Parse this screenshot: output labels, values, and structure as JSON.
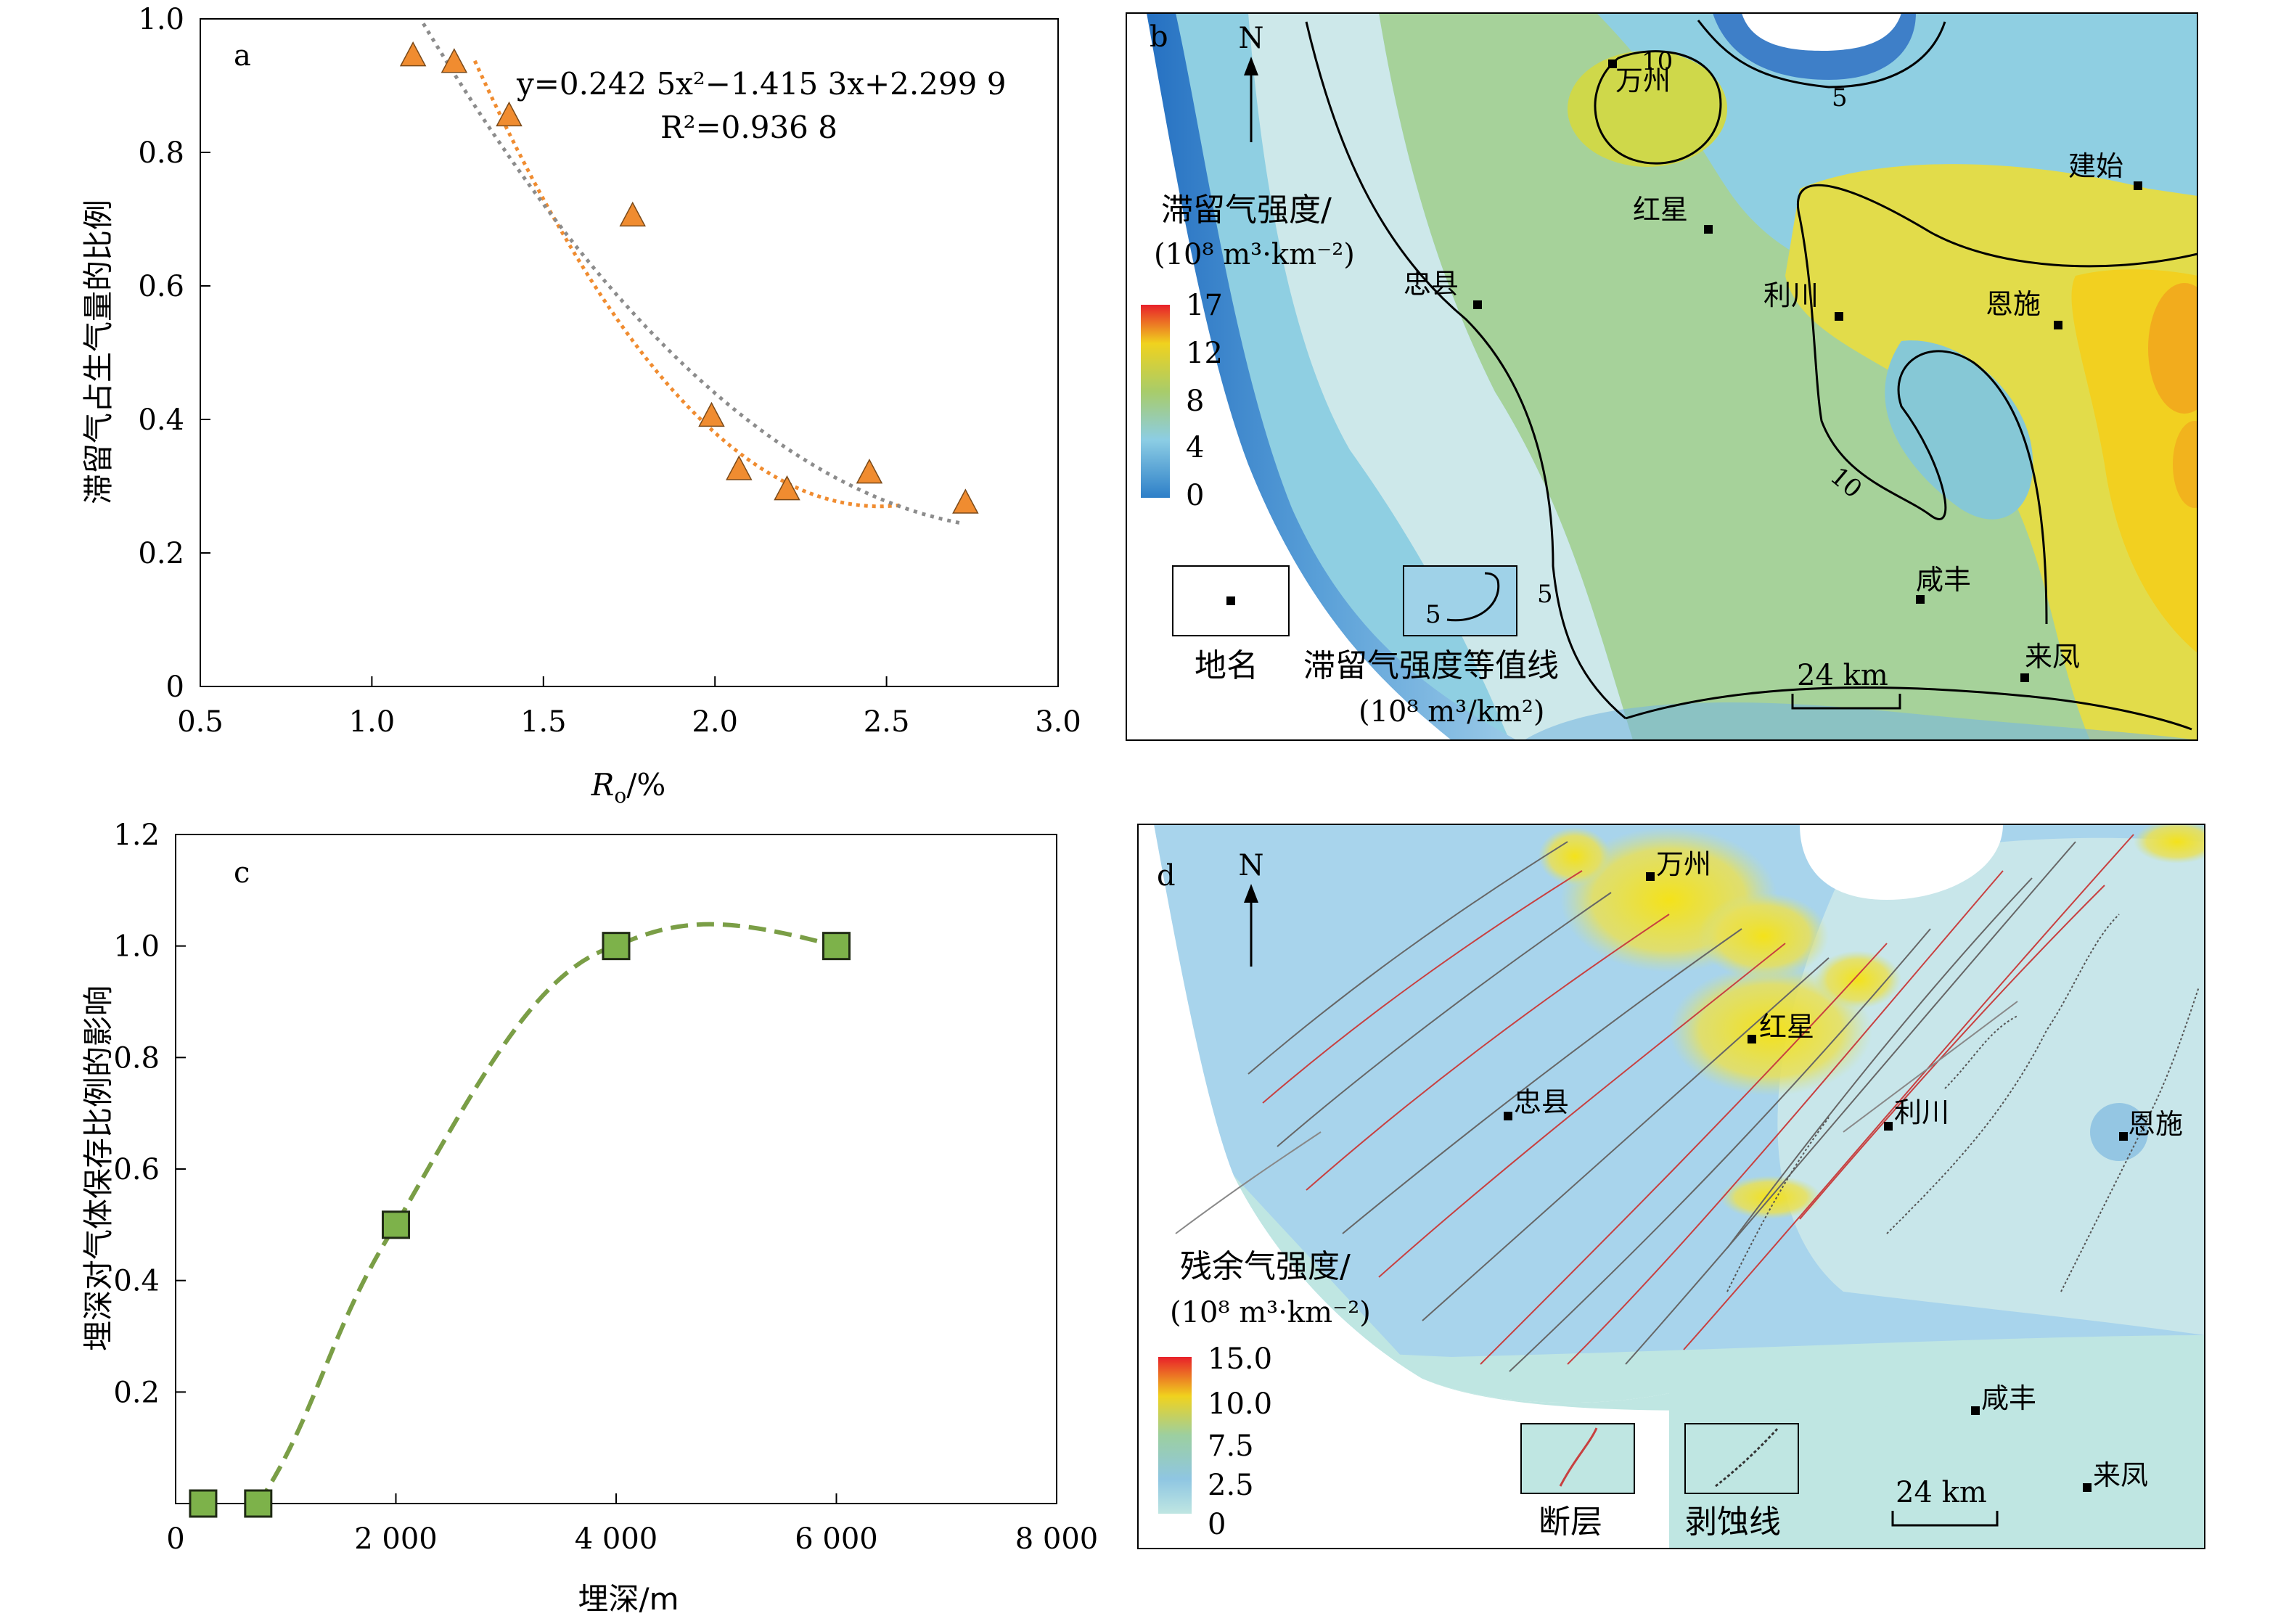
{
  "chart_data": [
    {
      "panel": "a",
      "type": "scatter",
      "xlabel_main": "R",
      "xlabel_sub": "o",
      "xlabel_tail": "/%",
      "ylabel": "滞留气占生气量的比例",
      "xlim": [
        0.5,
        3.0
      ],
      "ylim": [
        0,
        1.0
      ],
      "xticks": [
        0.5,
        1.0,
        1.5,
        2.0,
        2.5,
        3.0
      ],
      "xtick_labels": [
        "0.5",
        "1.0",
        "1.5",
        "2.0",
        "2.5",
        "3.0"
      ],
      "yticks": [
        0,
        0.2,
        0.4,
        0.6,
        0.8,
        1.0
      ],
      "ytick_labels": [
        "0",
        "0.2",
        "0.4",
        "0.6",
        "0.8",
        "1.0"
      ],
      "marker_color": "#f08c30",
      "x": [
        1.12,
        1.24,
        1.4,
        1.76,
        1.99,
        2.07,
        2.21,
        2.45,
        2.73
      ],
      "y": [
        0.945,
        0.935,
        0.855,
        0.705,
        0.405,
        0.325,
        0.295,
        0.32,
        0.275
      ],
      "equation": "y=0.242 5x²−1.415 3x+2.299 9",
      "r_squared": "R²=0.936 8",
      "fit_coeffs": [
        0.2425,
        -1.4153,
        2.2999
      ],
      "fit_range": [
        1.15,
        2.72
      ]
    },
    {
      "panel": "c",
      "type": "line",
      "xlabel": "埋深/m",
      "ylabel": "埋深对气体保存比例的影响",
      "xlim": [
        0,
        8000
      ],
      "ylim": [
        0,
        1.2
      ],
      "xticks": [
        0,
        2000,
        4000,
        6000,
        8000
      ],
      "xtick_labels": [
        "0",
        "2 000",
        "4 000",
        "6 000",
        "8 000"
      ],
      "yticks": [
        0.2,
        0.4,
        0.6,
        0.8,
        1.0,
        1.2
      ],
      "ytick_labels": [
        "0.2",
        "0.4",
        "0.6",
        "0.8",
        "1.0",
        "1.2"
      ],
      "marker_color": "#7db24a",
      "line_color": "#7a9e46",
      "x": [
        250,
        750,
        2000,
        4000,
        6000
      ],
      "y": [
        0,
        0,
        0.5,
        1.0,
        1.0
      ]
    }
  ],
  "map_b": {
    "label": "b",
    "north": "N",
    "legend_title_1": "滞留气强度/",
    "legend_title_2": "(10⁸ m³·km⁻²)",
    "colorbar_ticks": [
      "17",
      "12",
      "8",
      "4",
      "0"
    ],
    "contour_labels": [
      "10",
      "5",
      "10",
      "5",
      "5"
    ],
    "places": [
      "万州",
      "建始",
      "红星",
      "忠县",
      "利川",
      "恩施",
      "咸丰",
      "来凤"
    ],
    "legend_place": "地名",
    "legend_contour_value": "5",
    "legend_contour_1": "滞留气强度等值线",
    "legend_contour_2": "(10⁸ m³/km²)",
    "scale": "24 km"
  },
  "map_d": {
    "label": "d",
    "north": "N",
    "legend_title_1": "残余气强度/",
    "legend_title_2": "(10⁸ m³·km⁻²)",
    "colorbar_ticks": [
      "15.0",
      "10.0",
      "7.5",
      "2.5",
      "0"
    ],
    "places": [
      "万州",
      "红星",
      "忠县",
      "利川",
      "恩施",
      "咸丰",
      "来凤"
    ],
    "legend_fault": "断层",
    "legend_erosion": "剥蚀线",
    "scale": "24 km"
  }
}
